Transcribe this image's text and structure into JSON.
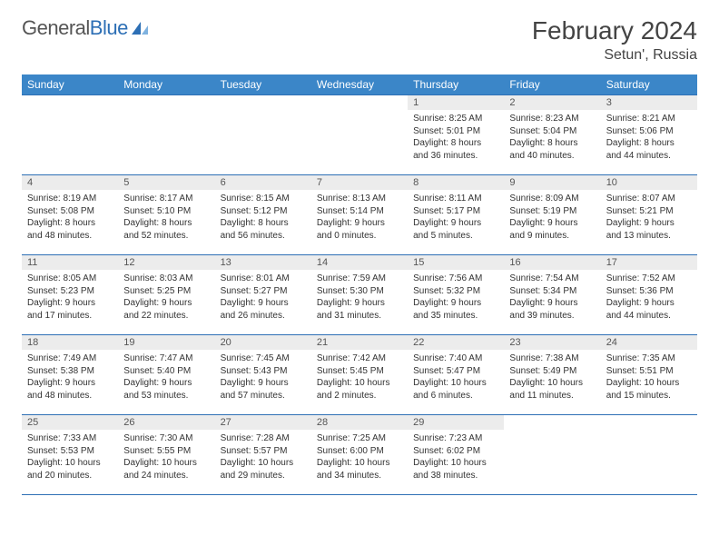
{
  "brand": {
    "text_general": "General",
    "text_blue": "Blue"
  },
  "title": "February 2024",
  "location": "Setun', Russia",
  "colors": {
    "header_bg": "#3b86c8",
    "border": "#2d6fb5",
    "daynum_bg": "#ececec",
    "text": "#333333"
  },
  "day_headers": [
    "Sunday",
    "Monday",
    "Tuesday",
    "Wednesday",
    "Thursday",
    "Friday",
    "Saturday"
  ],
  "weeks": [
    [
      {
        "empty": true
      },
      {
        "empty": true
      },
      {
        "empty": true
      },
      {
        "empty": true
      },
      {
        "num": "1",
        "sunrise": "Sunrise: 8:25 AM",
        "sunset": "Sunset: 5:01 PM",
        "daylight": "Daylight: 8 hours and 36 minutes."
      },
      {
        "num": "2",
        "sunrise": "Sunrise: 8:23 AM",
        "sunset": "Sunset: 5:04 PM",
        "daylight": "Daylight: 8 hours and 40 minutes."
      },
      {
        "num": "3",
        "sunrise": "Sunrise: 8:21 AM",
        "sunset": "Sunset: 5:06 PM",
        "daylight": "Daylight: 8 hours and 44 minutes."
      }
    ],
    [
      {
        "num": "4",
        "sunrise": "Sunrise: 8:19 AM",
        "sunset": "Sunset: 5:08 PM",
        "daylight": "Daylight: 8 hours and 48 minutes."
      },
      {
        "num": "5",
        "sunrise": "Sunrise: 8:17 AM",
        "sunset": "Sunset: 5:10 PM",
        "daylight": "Daylight: 8 hours and 52 minutes."
      },
      {
        "num": "6",
        "sunrise": "Sunrise: 8:15 AM",
        "sunset": "Sunset: 5:12 PM",
        "daylight": "Daylight: 8 hours and 56 minutes."
      },
      {
        "num": "7",
        "sunrise": "Sunrise: 8:13 AM",
        "sunset": "Sunset: 5:14 PM",
        "daylight": "Daylight: 9 hours and 0 minutes."
      },
      {
        "num": "8",
        "sunrise": "Sunrise: 8:11 AM",
        "sunset": "Sunset: 5:17 PM",
        "daylight": "Daylight: 9 hours and 5 minutes."
      },
      {
        "num": "9",
        "sunrise": "Sunrise: 8:09 AM",
        "sunset": "Sunset: 5:19 PM",
        "daylight": "Daylight: 9 hours and 9 minutes."
      },
      {
        "num": "10",
        "sunrise": "Sunrise: 8:07 AM",
        "sunset": "Sunset: 5:21 PM",
        "daylight": "Daylight: 9 hours and 13 minutes."
      }
    ],
    [
      {
        "num": "11",
        "sunrise": "Sunrise: 8:05 AM",
        "sunset": "Sunset: 5:23 PM",
        "daylight": "Daylight: 9 hours and 17 minutes."
      },
      {
        "num": "12",
        "sunrise": "Sunrise: 8:03 AM",
        "sunset": "Sunset: 5:25 PM",
        "daylight": "Daylight: 9 hours and 22 minutes."
      },
      {
        "num": "13",
        "sunrise": "Sunrise: 8:01 AM",
        "sunset": "Sunset: 5:27 PM",
        "daylight": "Daylight: 9 hours and 26 minutes."
      },
      {
        "num": "14",
        "sunrise": "Sunrise: 7:59 AM",
        "sunset": "Sunset: 5:30 PM",
        "daylight": "Daylight: 9 hours and 31 minutes."
      },
      {
        "num": "15",
        "sunrise": "Sunrise: 7:56 AM",
        "sunset": "Sunset: 5:32 PM",
        "daylight": "Daylight: 9 hours and 35 minutes."
      },
      {
        "num": "16",
        "sunrise": "Sunrise: 7:54 AM",
        "sunset": "Sunset: 5:34 PM",
        "daylight": "Daylight: 9 hours and 39 minutes."
      },
      {
        "num": "17",
        "sunrise": "Sunrise: 7:52 AM",
        "sunset": "Sunset: 5:36 PM",
        "daylight": "Daylight: 9 hours and 44 minutes."
      }
    ],
    [
      {
        "num": "18",
        "sunrise": "Sunrise: 7:49 AM",
        "sunset": "Sunset: 5:38 PM",
        "daylight": "Daylight: 9 hours and 48 minutes."
      },
      {
        "num": "19",
        "sunrise": "Sunrise: 7:47 AM",
        "sunset": "Sunset: 5:40 PM",
        "daylight": "Daylight: 9 hours and 53 minutes."
      },
      {
        "num": "20",
        "sunrise": "Sunrise: 7:45 AM",
        "sunset": "Sunset: 5:43 PM",
        "daylight": "Daylight: 9 hours and 57 minutes."
      },
      {
        "num": "21",
        "sunrise": "Sunrise: 7:42 AM",
        "sunset": "Sunset: 5:45 PM",
        "daylight": "Daylight: 10 hours and 2 minutes."
      },
      {
        "num": "22",
        "sunrise": "Sunrise: 7:40 AM",
        "sunset": "Sunset: 5:47 PM",
        "daylight": "Daylight: 10 hours and 6 minutes."
      },
      {
        "num": "23",
        "sunrise": "Sunrise: 7:38 AM",
        "sunset": "Sunset: 5:49 PM",
        "daylight": "Daylight: 10 hours and 11 minutes."
      },
      {
        "num": "24",
        "sunrise": "Sunrise: 7:35 AM",
        "sunset": "Sunset: 5:51 PM",
        "daylight": "Daylight: 10 hours and 15 minutes."
      }
    ],
    [
      {
        "num": "25",
        "sunrise": "Sunrise: 7:33 AM",
        "sunset": "Sunset: 5:53 PM",
        "daylight": "Daylight: 10 hours and 20 minutes."
      },
      {
        "num": "26",
        "sunrise": "Sunrise: 7:30 AM",
        "sunset": "Sunset: 5:55 PM",
        "daylight": "Daylight: 10 hours and 24 minutes."
      },
      {
        "num": "27",
        "sunrise": "Sunrise: 7:28 AM",
        "sunset": "Sunset: 5:57 PM",
        "daylight": "Daylight: 10 hours and 29 minutes."
      },
      {
        "num": "28",
        "sunrise": "Sunrise: 7:25 AM",
        "sunset": "Sunset: 6:00 PM",
        "daylight": "Daylight: 10 hours and 34 minutes."
      },
      {
        "num": "29",
        "sunrise": "Sunrise: 7:23 AM",
        "sunset": "Sunset: 6:02 PM",
        "daylight": "Daylight: 10 hours and 38 minutes."
      },
      {
        "empty": true
      },
      {
        "empty": true
      }
    ]
  ]
}
